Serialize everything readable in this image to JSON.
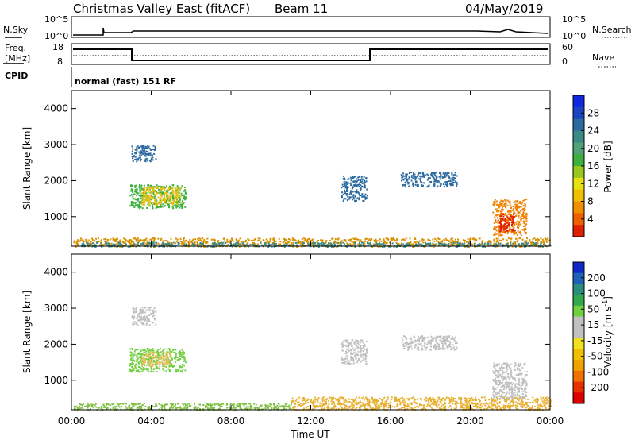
{
  "header": {
    "title": "Christmas Valley East (fitACF)",
    "beam": "Beam 11",
    "date": "04/May/2019"
  },
  "top_panels": {
    "nsky_label": "N.Sky",
    "nsky_ticks": [
      "10^5",
      "10^0"
    ],
    "nsearch_label": "N.Search",
    "nsearch_ticks": [
      "10^5",
      "10^0"
    ],
    "freq_label_line1": "Freq.",
    "freq_label_line2": "[MHz]",
    "freq_ticks": [
      "18",
      "8"
    ],
    "nave_label": "Nave",
    "nave_ticks": [
      "60",
      "0"
    ],
    "cpid_label": "CPID",
    "cpid_text": "normal (fast) 151 RF"
  },
  "power_colorbar": {
    "label": "Power [dB]",
    "ticks": [
      "28",
      "24",
      "20",
      "16",
      "12",
      "8",
      "4"
    ],
    "colors": [
      "#1028e0",
      "#1a44c0",
      "#2a6aa0",
      "#3a8a86",
      "#52a078",
      "#3cb03c",
      "#98c820",
      "#e8e010",
      "#f0c000",
      "#f09000",
      "#f06000",
      "#e02000"
    ]
  },
  "velocity_colorbar": {
    "label_main": "Velocity [m s",
    "label_sup": "-1",
    "label_end": "]",
    "ticks": [
      "200",
      "100",
      "50",
      "15",
      "-15",
      "-50",
      "-100",
      "-200"
    ],
    "colors": [
      "#1028c8",
      "#1c62b8",
      "#2a8e7e",
      "#30a850",
      "#70d040",
      "#c0c0c0",
      "#c0c0c0",
      "#f0e020",
      "#f0c000",
      "#f0a000",
      "#f07000",
      "#e83000",
      "#e00000"
    ]
  },
  "chart_data": [
    {
      "type": "heatmap",
      "name": "power",
      "ylabel": "Slant Range [km]",
      "yticks": [
        "4000",
        "3000",
        "2000",
        "1000"
      ],
      "ylim": [
        180,
        4500
      ],
      "xlim": [
        0,
        24
      ],
      "patches": [
        {
          "t0": 0.1,
          "t1": 24.0,
          "r0": 180,
          "r1": 420,
          "color": "#d89000"
        },
        {
          "t0": 0.3,
          "t1": 24.0,
          "r0": 180,
          "r1": 300,
          "color": "#3a8a86"
        },
        {
          "t0": 2.9,
          "t1": 5.7,
          "r0": 1250,
          "r1": 1900,
          "color": "#3cb03c"
        },
        {
          "t0": 3.5,
          "t1": 5.5,
          "r0": 1350,
          "r1": 1850,
          "color": "#e8c010"
        },
        {
          "t0": 3.0,
          "t1": 4.2,
          "r0": 2550,
          "r1": 3000,
          "color": "#2a6aa0"
        },
        {
          "t0": 13.5,
          "t1": 14.8,
          "r0": 1450,
          "r1": 2150,
          "color": "#2a6aa0"
        },
        {
          "t0": 16.5,
          "t1": 19.3,
          "r0": 1850,
          "r1": 2250,
          "color": "#2a6aa0"
        },
        {
          "t0": 21.1,
          "t1": 22.8,
          "r0": 500,
          "r1": 1500,
          "color": "#f08000"
        },
        {
          "t0": 21.4,
          "t1": 22.2,
          "r0": 600,
          "r1": 1100,
          "color": "#e02000"
        }
      ]
    },
    {
      "type": "heatmap",
      "name": "velocity",
      "ylabel": "Slant Range [km]",
      "yticks": [
        "4000",
        "3000",
        "2000",
        "1000"
      ],
      "ylim": [
        180,
        4500
      ],
      "xlim": [
        0,
        24
      ],
      "xlabel": "Time UT",
      "xticks": [
        "00:00",
        "04:00",
        "08:00",
        "12:00",
        "16:00",
        "20:00",
        "00:00"
      ],
      "patches": [
        {
          "t0": 0.1,
          "t1": 11.0,
          "r0": 180,
          "r1": 380,
          "color": "#7ec040"
        },
        {
          "t0": 11.0,
          "t1": 24.0,
          "r0": 180,
          "r1": 550,
          "color": "#e8b030"
        },
        {
          "t0": 2.9,
          "t1": 5.7,
          "r0": 1250,
          "r1": 1900,
          "color": "#70d040"
        },
        {
          "t0": 3.5,
          "t1": 5.0,
          "r0": 1400,
          "r1": 1800,
          "color": "#e8c060"
        },
        {
          "t0": 3.0,
          "t1": 4.2,
          "r0": 2550,
          "r1": 3050,
          "color": "#c0c0c0"
        },
        {
          "t0": 13.5,
          "t1": 14.8,
          "r0": 1450,
          "r1": 2150,
          "color": "#c0c0c0"
        },
        {
          "t0": 16.5,
          "t1": 19.3,
          "r0": 1850,
          "r1": 2250,
          "color": "#c0c0c0"
        },
        {
          "t0": 21.1,
          "t1": 22.8,
          "r0": 500,
          "r1": 1500,
          "color": "#c0c0c0"
        }
      ]
    }
  ]
}
